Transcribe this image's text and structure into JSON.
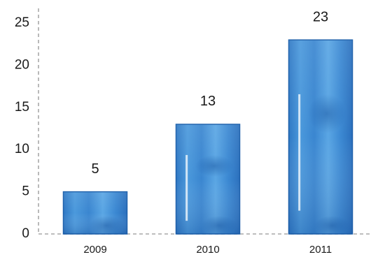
{
  "chart_data": {
    "type": "bar",
    "categories": [
      "2009",
      "2010",
      "2011"
    ],
    "values": [
      5,
      13,
      23
    ],
    "data_labels": [
      "5",
      "13",
      "23"
    ],
    "title": "",
    "xlabel": "",
    "ylabel": "",
    "ylim": [
      0,
      25
    ],
    "yticks": [
      "0",
      "5",
      "10",
      "15",
      "20",
      "25"
    ],
    "grid": false,
    "axis_style": "dashed",
    "colors": {
      "bar_fill": "#3f8fd6",
      "bar_light": "#6cb0ea",
      "bar_dark": "#1f62ad",
      "bar_stroke": "#1b5faa",
      "axis": "#a8a8a8",
      "text": "#1a1a1a"
    }
  }
}
